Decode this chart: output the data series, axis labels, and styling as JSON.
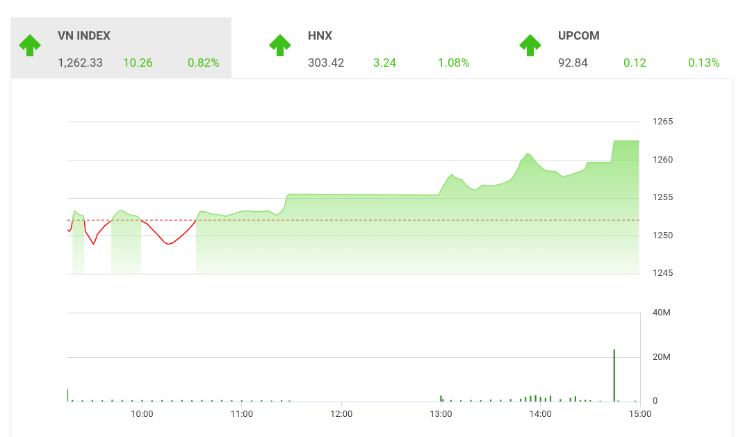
{
  "chart_data": [
    {
      "type": "other",
      "annotations": [
        "VN INDEX",
        "1,262.33",
        "10.26",
        "0.82%",
        "HNX",
        "303.42",
        "3.24",
        "1.08%",
        "UPCOM",
        "92.84",
        "0.12",
        "0.13%"
      ]
    },
    {
      "type": "area",
      "xlim": [
        9.25,
        15
      ],
      "ylim": [
        1245,
        1265
      ],
      "yticks": [
        1245,
        1250,
        1255,
        1260,
        1265
      ],
      "tick_labels": "y",
      "grid": "y",
      "ref_lines": [
        {
          "axis": "y",
          "value": 1252.07,
          "color": "#ff0000",
          "line_style": "dashed"
        }
      ],
      "series": [
        {
          "color": "#90e070",
          "x": [
            9.3,
            9.32,
            9.34,
            9.37,
            9.41,
            9.42
          ],
          "values": [
            1252.0,
            1253.3,
            1253.1,
            1252.8,
            1252.7,
            1252.0
          ]
        },
        {
          "color": "#90e070",
          "x": [
            9.69,
            9.72,
            9.76,
            9.8,
            9.84,
            9.9,
            9.95,
            9.99
          ],
          "values": [
            1252.0,
            1252.6,
            1253.2,
            1253.4,
            1253.0,
            1252.7,
            1252.6,
            1252.0
          ]
        },
        {
          "color": "#90e070",
          "x": [
            10.54,
            10.58,
            10.63,
            10.7,
            10.77,
            10.84,
            10.91,
            10.98,
            11.05,
            11.12,
            11.19,
            11.26,
            11.3,
            11.35,
            11.4,
            11.43,
            11.45,
            11.47,
            11.5,
            12.98,
            13.01,
            13.04,
            13.07,
            13.11,
            13.14,
            13.21,
            13.24,
            13.28,
            13.34,
            13.42,
            13.52,
            13.59,
            13.66,
            13.7,
            13.73,
            13.77,
            13.8,
            13.84,
            13.87,
            13.91,
            13.94,
            13.99,
            14.05,
            14.15,
            14.22,
            14.29,
            14.4,
            14.45,
            14.47,
            14.71,
            14.74,
            14.99
          ],
          "values": [
            1252.0,
            1253.2,
            1253.2,
            1252.9,
            1252.8,
            1252.6,
            1252.9,
            1253.2,
            1253.3,
            1253.2,
            1253.2,
            1253.3,
            1253.1,
            1252.7,
            1253.2,
            1253.8,
            1255.1,
            1255.5,
            1255.5,
            1255.4,
            1256.3,
            1256.9,
            1257.6,
            1258.1,
            1257.7,
            1257.4,
            1256.9,
            1256.4,
            1256.0,
            1256.7,
            1256.6,
            1256.8,
            1257.1,
            1257.4,
            1257.9,
            1258.8,
            1259.8,
            1260.4,
            1260.9,
            1260.5,
            1259.9,
            1259.2,
            1258.6,
            1258.5,
            1257.8,
            1258.0,
            1258.5,
            1258.8,
            1259.7,
            1259.7,
            1262.5,
            1262.5
          ]
        },
        {
          "type": "line",
          "color": "#ff0000",
          "x": [
            9.25,
            9.27,
            9.29,
            9.3
          ],
          "values": [
            1250.8,
            1250.6,
            1251.0,
            1252.0
          ]
        },
        {
          "type": "line",
          "color": "#ff0000",
          "x": [
            9.42,
            9.43,
            9.48,
            9.51,
            9.53,
            9.55,
            9.59,
            9.63,
            9.69
          ],
          "values": [
            1252.0,
            1250.6,
            1249.6,
            1248.9,
            1249.4,
            1250.2,
            1250.8,
            1251.4,
            1252.0
          ]
        },
        {
          "type": "line",
          "color": "#ff0000",
          "x": [
            9.99,
            10.05,
            10.1,
            10.16,
            10.22,
            10.26,
            10.31,
            10.37,
            10.43,
            10.49,
            10.54
          ],
          "values": [
            1252.0,
            1251.6,
            1250.9,
            1250.1,
            1249.2,
            1248.9,
            1249.1,
            1249.7,
            1250.4,
            1251.2,
            1252.0
          ]
        }
      ]
    },
    {
      "type": "bar",
      "xlim": [
        9.25,
        15
      ],
      "xticks": [
        {
          "value": 10,
          "label": "10:00"
        },
        {
          "value": 11,
          "label": "11:00"
        },
        {
          "value": 12,
          "label": "12:00"
        },
        {
          "value": 13,
          "label": "13:00"
        },
        {
          "value": 14,
          "label": "14:00"
        },
        {
          "value": 15,
          "label": "15:00"
        }
      ],
      "ylim": [
        0,
        40
      ],
      "yticks": [
        {
          "value": 0,
          "label": "0"
        },
        {
          "value": 20,
          "label": "20M"
        },
        {
          "value": 40,
          "label": "40M"
        }
      ],
      "grid": "y",
      "series": [
        {
          "color": "#2e8b1e",
          "x": [
            9.25,
            9.3,
            9.4,
            9.5,
            9.6,
            9.7,
            9.8,
            9.9,
            10.0,
            10.1,
            10.2,
            10.3,
            10.4,
            10.5,
            10.6,
            10.7,
            10.8,
            10.9,
            11.0,
            11.1,
            11.2,
            11.3,
            11.4,
            11.48,
            13.0,
            13.02,
            13.1,
            13.2,
            13.3,
            13.4,
            13.5,
            13.6,
            13.7,
            13.8,
            13.85,
            13.9,
            13.95,
            14.0,
            14.05,
            14.1,
            14.2,
            14.3,
            14.35,
            14.4,
            14.45,
            14.5,
            14.6,
            14.74,
            14.78,
            14.95
          ],
          "values": [
            5.6,
            0.6,
            0.5,
            0.6,
            0.5,
            0.7,
            0.6,
            0.5,
            0.6,
            0.5,
            0.6,
            0.5,
            0.6,
            0.5,
            0.6,
            0.5,
            0.6,
            0.5,
            0.5,
            0.4,
            0.5,
            0.4,
            0.5,
            0.4,
            2.6,
            1.0,
            0.6,
            0.5,
            0.6,
            0.5,
            0.8,
            0.7,
            1.0,
            1.2,
            2.0,
            2.5,
            2.8,
            2.0,
            1.5,
            2.6,
            1.0,
            1.5,
            2.3,
            0.6,
            0.7,
            0.5,
            0.3,
            23.5,
            0.4,
            0.3
          ]
        }
      ]
    }
  ]
}
